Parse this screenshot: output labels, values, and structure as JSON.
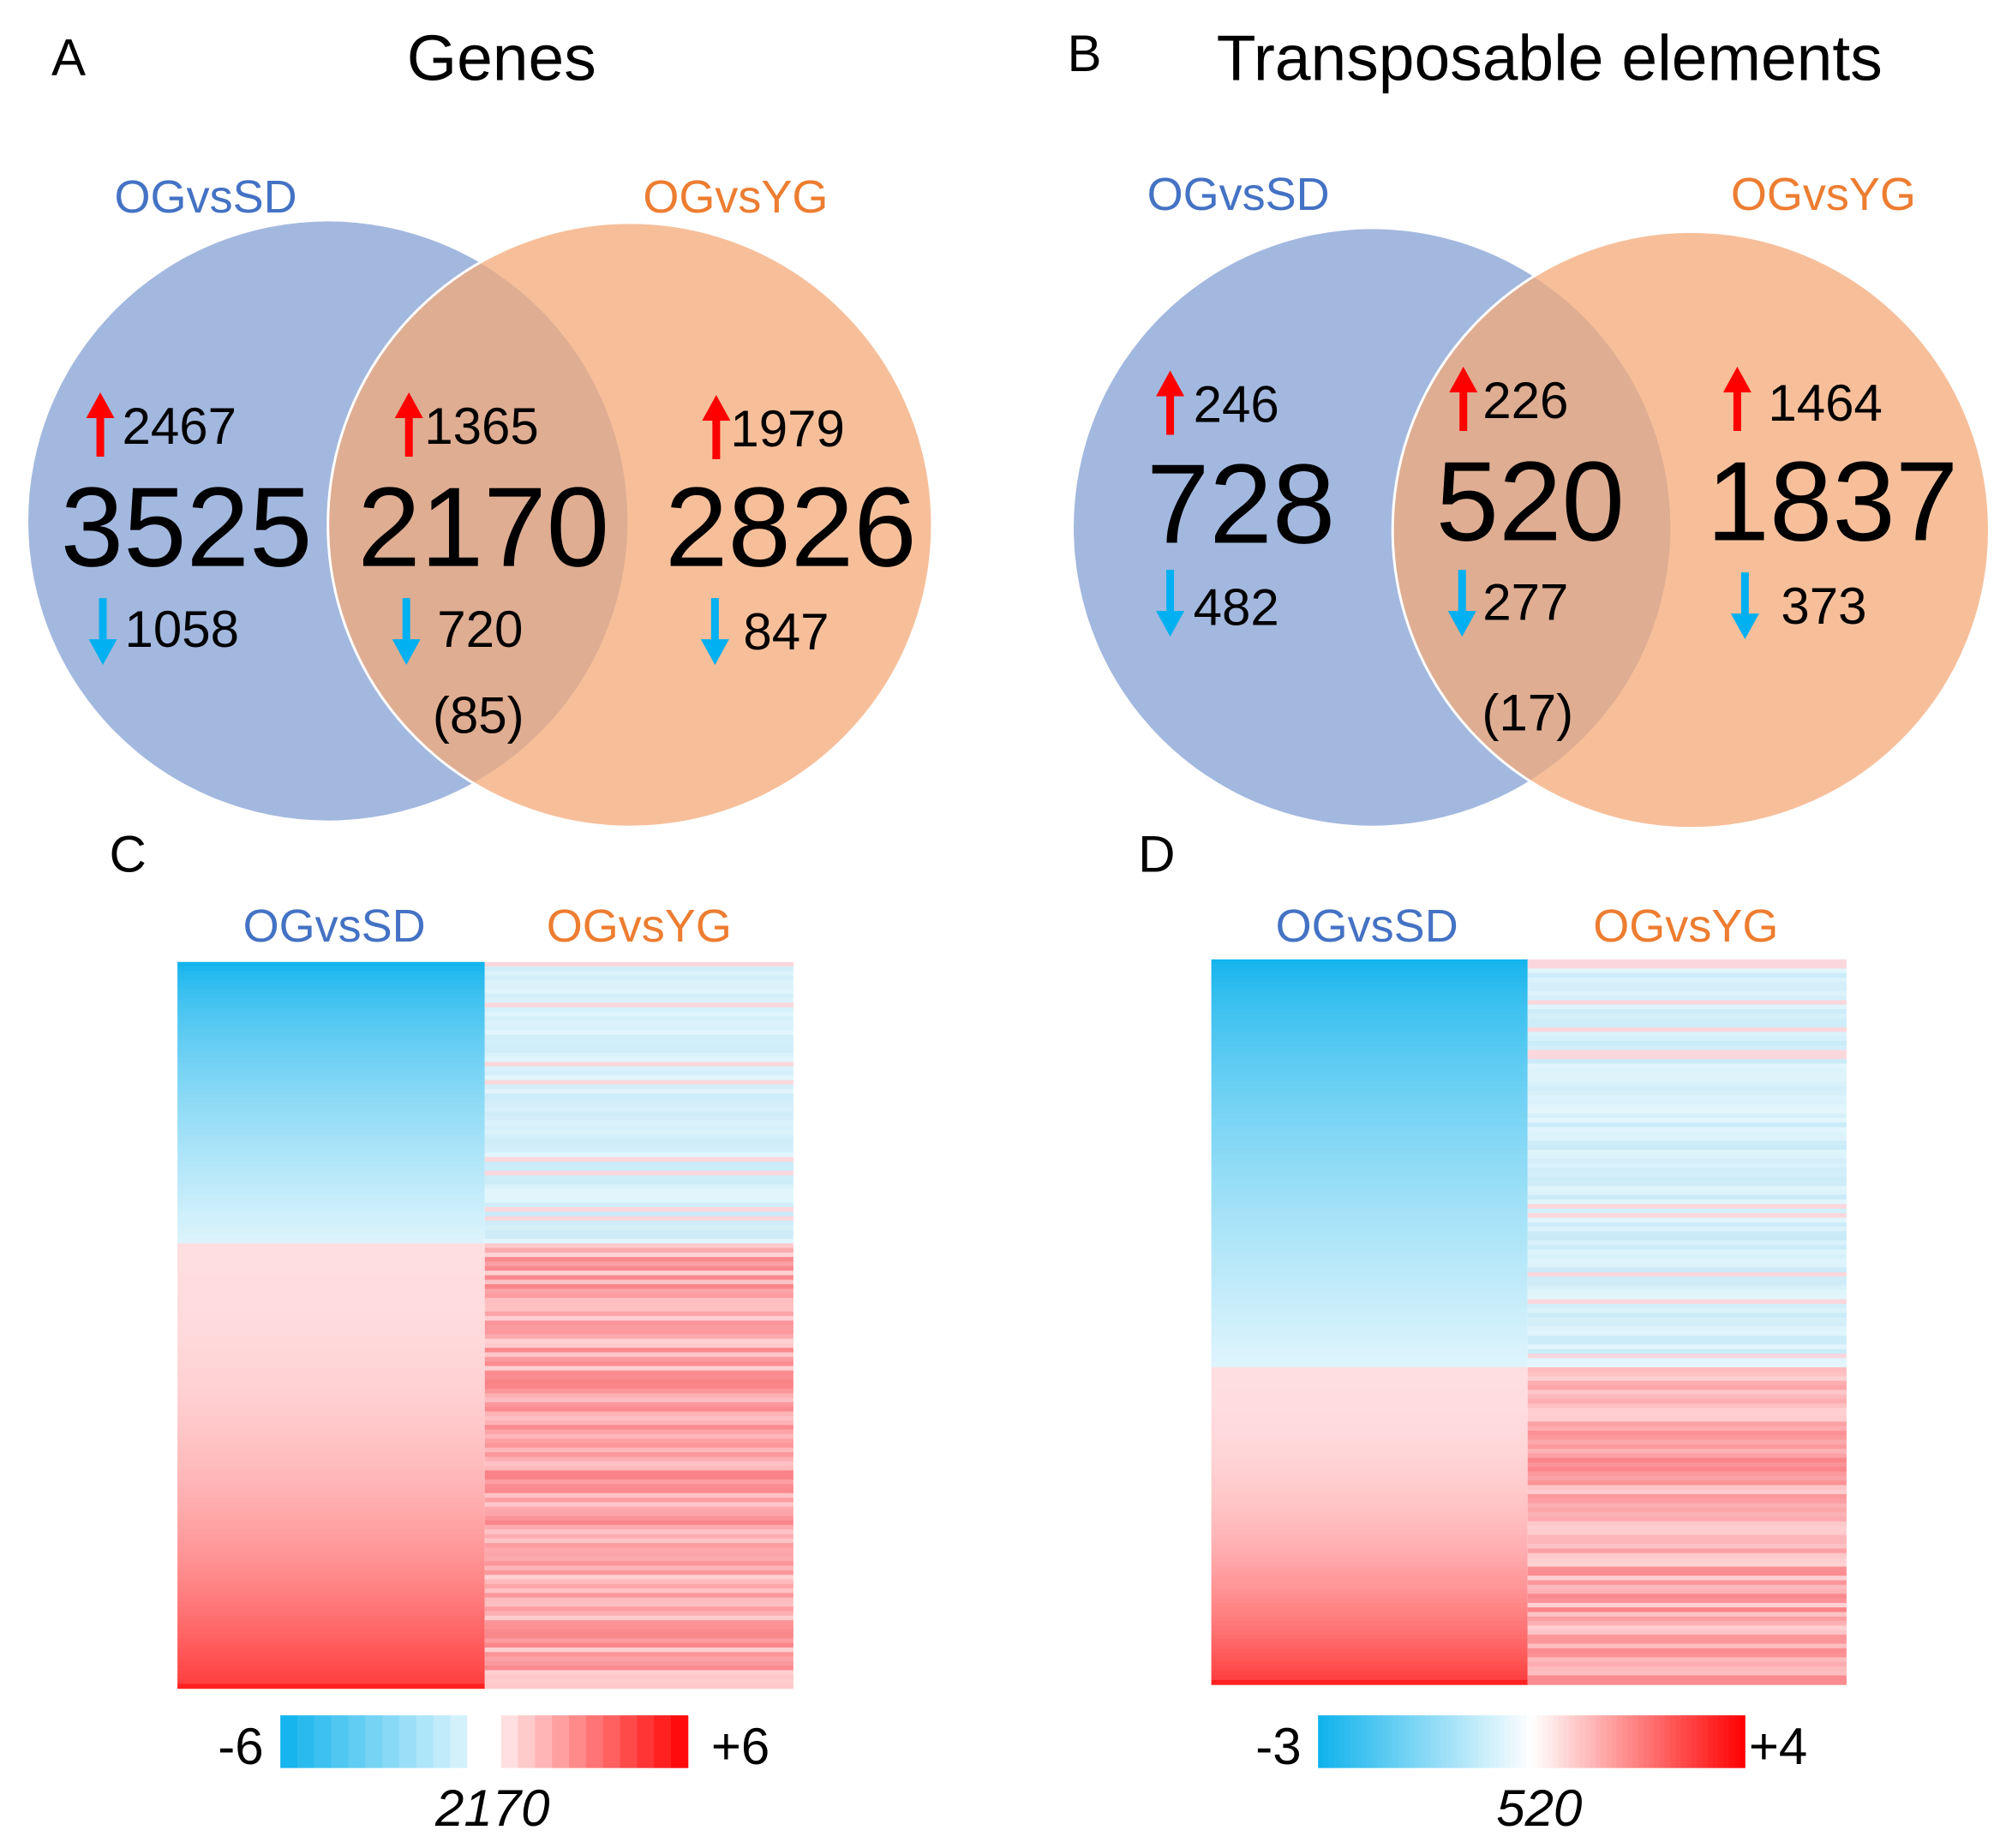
{
  "colors": {
    "blue_circle": "#8fa8d8",
    "orange_circle": "#f3aa78",
    "label_blue": "#4472c4",
    "label_orange": "#ed7d31",
    "up": "#ff0000",
    "down": "#00b0f0"
  },
  "chart_data": [
    {
      "type": "venn",
      "panel": "A",
      "title": "Genes",
      "sets": [
        {
          "name": "OGvsSD",
          "only_total": 3525,
          "up": 2467,
          "down": 1058
        },
        {
          "name": "OGvsYG",
          "only_total": 2826,
          "up": 1979,
          "down": 847
        }
      ],
      "overlap": {
        "total": 2170,
        "up": 1365,
        "down": 720,
        "discordant": "(85)"
      }
    },
    {
      "type": "venn",
      "panel": "B",
      "title": "Transposable elements",
      "sets": [
        {
          "name": "OGvsSD",
          "only_total": 728,
          "up": 246,
          "down": 482
        },
        {
          "name": "OGvsYG",
          "only_total": 1837,
          "up": 1464,
          "down": 373
        }
      ],
      "overlap": {
        "total": 520,
        "up": 226,
        "down": 277,
        "discordant": "(17)"
      }
    },
    {
      "type": "heatmap",
      "panel": "C",
      "columns": [
        "OGvsSD",
        "OGvsYG"
      ],
      "n": "2170",
      "down_fraction": 0.39,
      "scale": {
        "min": "-6",
        "max": "+6",
        "min_value": -6,
        "max_value": 6
      }
    },
    {
      "type": "heatmap",
      "panel": "D",
      "columns": [
        "OGvsSD",
        "OGvsYG"
      ],
      "n": "520",
      "down_fraction": 0.56,
      "scale": {
        "min": "-3",
        "max": "+4",
        "min_value": -3,
        "max_value": 4
      }
    }
  ]
}
